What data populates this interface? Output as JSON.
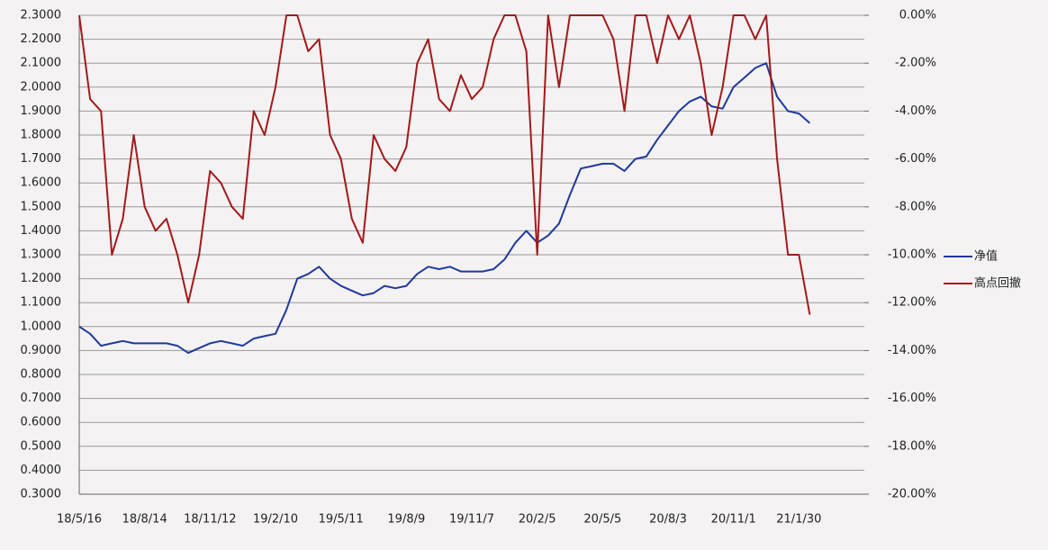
{
  "chart_data": {
    "type": "line",
    "categories": [
      "18/5/16",
      null,
      null,
      null,
      null,
      null,
      "18/8/14",
      null,
      null,
      null,
      null,
      null,
      "18/11/12",
      null,
      null,
      null,
      null,
      null,
      "19/2/10",
      null,
      null,
      null,
      null,
      null,
      "19/5/11",
      null,
      null,
      null,
      null,
      null,
      "19/8/9",
      null,
      null,
      null,
      null,
      null,
      "19/11/7",
      null,
      null,
      null,
      null,
      null,
      "20/2/5",
      null,
      null,
      null,
      null,
      null,
      "20/5/5",
      null,
      null,
      null,
      null,
      null,
      "20/8/3",
      null,
      null,
      null,
      null,
      null,
      "20/11/1",
      null,
      null,
      null,
      null,
      null,
      "21/1/30",
      null,
      null,
      null,
      null,
      null,
      null
    ],
    "series": [
      {
        "name": "净值",
        "color": "#1f3a9a",
        "axis": "y",
        "values": [
          1.0,
          0.97,
          0.92,
          0.93,
          0.94,
          0.93,
          0.93,
          0.93,
          0.93,
          0.92,
          0.89,
          0.91,
          0.93,
          0.94,
          0.93,
          0.92,
          0.95,
          0.96,
          0.97,
          1.07,
          1.2,
          1.22,
          1.25,
          1.2,
          1.17,
          1.15,
          1.13,
          1.14,
          1.17,
          1.16,
          1.17,
          1.22,
          1.25,
          1.24,
          1.25,
          1.23,
          1.23,
          1.23,
          1.24,
          1.28,
          1.35,
          1.4,
          1.35,
          1.38,
          1.43,
          1.55,
          1.66,
          1.67,
          1.68,
          1.68,
          1.65,
          1.7,
          1.71,
          1.78,
          1.84,
          1.9,
          1.94,
          1.96,
          1.92,
          1.91,
          2.0,
          2.04,
          2.08,
          2.1,
          1.96,
          1.9,
          1.89,
          1.85,
          null,
          null,
          null,
          null,
          null
        ]
      },
      {
        "name": "高点回撤",
        "color": "#a3191a",
        "axis": "y2",
        "values": [
          0,
          -3.5,
          -4,
          -10,
          -8.5,
          -5,
          -8,
          -9,
          -8.5,
          -10,
          -12,
          -10,
          -6.5,
          -7,
          -8,
          -8.5,
          -4,
          -5,
          -3,
          0,
          0,
          -1.5,
          -1,
          -5,
          -6,
          -8.5,
          -9.5,
          -5,
          -6,
          -6.5,
          -5.5,
          -2,
          -1,
          -3.5,
          -4,
          -2.5,
          -3.5,
          -3,
          -1,
          0,
          0,
          -1.5,
          -10,
          0,
          -3,
          0,
          0,
          0,
          0,
          -1,
          -4,
          0,
          0,
          -2,
          0,
          -1,
          0,
          -2,
          -5,
          -3,
          0,
          0,
          -1,
          0,
          -6,
          -10,
          -10,
          -12.5,
          null,
          null,
          null,
          null,
          null
        ]
      }
    ],
    "ylim": [
      0.3,
      2.3
    ],
    "yticks": [
      {
        "value": 0.3,
        "label": "0.3000"
      },
      {
        "value": 0.4,
        "label": "0.4000"
      },
      {
        "value": 0.5,
        "label": "0.5000"
      },
      {
        "value": 0.6,
        "label": "0.6000"
      },
      {
        "value": 0.7,
        "label": "0.7000"
      },
      {
        "value": 0.8,
        "label": "0.8000"
      },
      {
        "value": 0.9,
        "label": "0.9000"
      },
      {
        "value": 1.0,
        "label": "1.0000"
      },
      {
        "value": 1.1,
        "label": "1.1000"
      },
      {
        "value": 1.2,
        "label": "1.2000"
      },
      {
        "value": 1.3,
        "label": "1.3000"
      },
      {
        "value": 1.4,
        "label": "1.4000"
      },
      {
        "value": 1.5,
        "label": "1.5000"
      },
      {
        "value": 1.6,
        "label": "1.6000"
      },
      {
        "value": 1.7,
        "label": "1.7000"
      },
      {
        "value": 1.8,
        "label": "1.8000"
      },
      {
        "value": 1.9,
        "label": "1.9000"
      },
      {
        "value": 2.0,
        "label": "2.0000"
      },
      {
        "value": 2.1,
        "label": "2.1000"
      },
      {
        "value": 2.2,
        "label": "2.2000"
      },
      {
        "value": 2.3,
        "label": "2.3000"
      }
    ],
    "y2lim": [
      -20,
      0
    ],
    "y2ticks": [
      {
        "value": 0,
        "label": "0.00%"
      },
      {
        "value": -2,
        "label": "-2.00%"
      },
      {
        "value": -4,
        "label": "-4.00%"
      },
      {
        "value": -6,
        "label": "-6.00%"
      },
      {
        "value": -8,
        "label": "-8.00%"
      },
      {
        "value": -10,
        "label": "-10.00%"
      },
      {
        "value": -12,
        "label": "-12.00%"
      },
      {
        "value": -14,
        "label": "-14.00%"
      },
      {
        "value": -16,
        "label": "-16.00%"
      },
      {
        "value": -18,
        "label": "-18.00%"
      },
      {
        "value": -20,
        "label": "-20.00%"
      }
    ],
    "grid": true,
    "legend": "right"
  }
}
